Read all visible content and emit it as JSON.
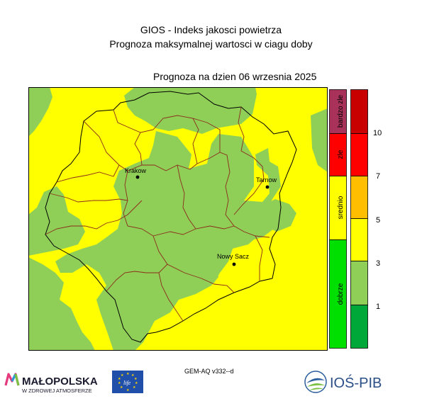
{
  "header": {
    "title_line1": "GIOS - Indeks jakosci powietrza",
    "title_line2": "Prognoza maksymalnej wartosci w ciagu doby",
    "date_label": "Prognoza na dzien  06 wrzesnia 2025"
  },
  "map": {
    "cities": [
      {
        "name": "Krakow"
      },
      {
        "name": "Tarnow"
      },
      {
        "name": "Nowy Sacz"
      }
    ],
    "colors": {
      "yellow_zone": "#ffff00",
      "green_zone": "#8fcf57",
      "district_border": "#8b2b1b",
      "region_border": "#000000"
    }
  },
  "legend": {
    "categories": [
      {
        "label": "bardzo zle",
        "color": "#a8325a"
      },
      {
        "label": "zle",
        "color": "#ff0000"
      },
      {
        "label": "srednio",
        "color": "#ffff00"
      },
      {
        "label": "dobrze",
        "color": "#00e000"
      }
    ],
    "scale_colors": [
      "#c80000",
      "#ff0000",
      "#ffbf00",
      "#ffff00",
      "#8fcf57",
      "#00a83a"
    ],
    "ticks": [
      "10",
      "7",
      "5",
      "3",
      "1"
    ]
  },
  "footer": {
    "model": "GEM-AQ v332--d",
    "malopolska_name": "MAŁOPOLSKA",
    "malopolska_tagline": "W ZDROWEJ ATMOSFERZE",
    "eu_text": "life",
    "ios_name": "IOŚ-PIB"
  }
}
